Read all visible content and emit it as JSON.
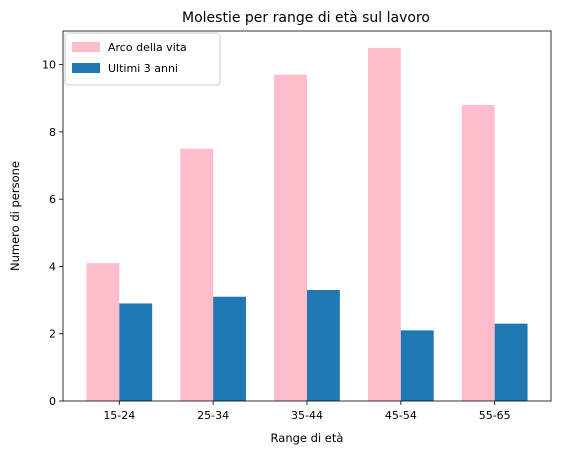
{
  "chart_data": {
    "type": "bar",
    "title": "Molestie per range di età sul lavoro",
    "xlabel": "Range di età",
    "ylabel": "Numero di persone",
    "categories": [
      "15-24",
      "25-34",
      "35-44",
      "45-54",
      "55-65"
    ],
    "series": [
      {
        "name": "Arco della vita",
        "color": "#ffbccb",
        "values": [
          4.1,
          7.5,
          9.7,
          10.5,
          8.8
        ]
      },
      {
        "name": "Ultimi 3 anni",
        "color": "#1f77b4",
        "values": [
          2.9,
          3.1,
          3.3,
          2.1,
          2.3
        ]
      }
    ],
    "ylim": [
      0,
      11
    ],
    "yticks": [
      0,
      2,
      4,
      6,
      8,
      10
    ],
    "grid": false,
    "legend": "top-left"
  }
}
